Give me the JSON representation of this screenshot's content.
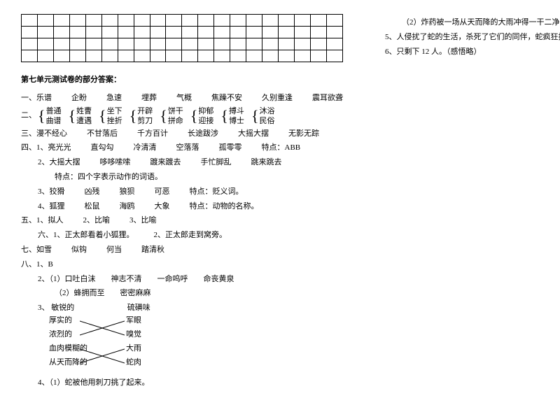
{
  "grid": {
    "rows": 4,
    "cols": 20
  },
  "sectionTitle": "第七单元测试卷的部分答案：",
  "q1": {
    "label": "一、",
    "words": [
      "乐谱",
      "企盼",
      "急速",
      "埋葬",
      "气概",
      "焦躁不安",
      "久别重逢",
      "震耳欲聋"
    ]
  },
  "q2": {
    "label": "二、",
    "pairs": [
      {
        "top": "普通",
        "bot": "曲谱"
      },
      {
        "top": "姓曹",
        "bot": "遭遇"
      },
      {
        "top": "坐下",
        "bot": "挫折"
      },
      {
        "top": "开辟",
        "bot": "剪刀"
      },
      {
        "top": "饼干",
        "bot": "拼命"
      },
      {
        "top": "抑郁",
        "bot": "迎接"
      },
      {
        "top": "搏斗",
        "bot": "博士"
      },
      {
        "top": "沐浴",
        "bot": "民俗"
      }
    ]
  },
  "q3": {
    "label": "三、",
    "words": [
      "漫不经心",
      "不甘落后",
      "千方百计",
      "长途跋涉",
      "大摇大摆",
      "无影无踪"
    ]
  },
  "q4": {
    "label": "四、",
    "rows": [
      {
        "num": "1、",
        "items": [
          "亮光光",
          "直勾勾",
          "冷清清",
          "空落落",
          "孤零零"
        ],
        "tail": "特点：ABB"
      },
      {
        "num": "2、",
        "items": [
          "大摇大摆",
          "哆哆嗦嗦",
          "踱来踱去",
          "手忙脚乱",
          "跳来跳去"
        ],
        "tail": ""
      },
      {
        "indent": true,
        "text": "特点：四个字表示动作的词语。"
      },
      {
        "num": "3、",
        "items": [
          "狡猾",
          "凶残",
          "狼狈",
          "可恶"
        ],
        "tail": "特点：贬义词。"
      },
      {
        "num": "4、",
        "items": [
          "狐狸",
          "松鼠",
          "海鸥",
          "大象"
        ],
        "tail": "特点：动物的名称。"
      }
    ]
  },
  "q5": {
    "label": "五、",
    "items": [
      "1、拟人",
      "2、比喻",
      "3、比喻"
    ]
  },
  "q6": {
    "label": "六、",
    "items": [
      "1、正太郎看着小狐狸。",
      "2、正太郎走到窝旁。"
    ]
  },
  "q7": {
    "label": "七、",
    "items": [
      "如雪",
      "似钩",
      "何当",
      "踏清秋"
    ]
  },
  "q8": {
    "label": "八、",
    "r1": "1、B",
    "r2a": "2、（1）口吐白沫　　神志不清　　一命呜呼　　命丧黄泉",
    "r2b": "（2）蜂拥而至　　密密麻麻",
    "r3label": "3、",
    "cross": {
      "left": [
        "敏锐的",
        "厚实的",
        "浓烈的",
        "血肉模糊的",
        "从天而降的"
      ],
      "right": [
        "硫磺味",
        "军眼",
        "嗅觉",
        "大雨",
        "蛇肉"
      ]
    },
    "r4a": "4、（1）蛇被他用刺刀挑了起来。"
  },
  "right": {
    "lines": [
      "（2）炸药被一场从天而降的大雨冲得一干二净。",
      "5、人侵扰了蛇的生活，杀死了它们的同伴，蛇疯狂报复。",
      "6、只剩下 12 人。（感悟略）"
    ]
  }
}
